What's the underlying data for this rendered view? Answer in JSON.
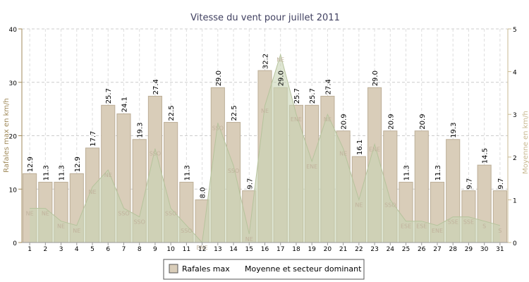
{
  "chart_data": {
    "type": "bar",
    "title": "Vitesse du vent pour juillet 2011",
    "ylabel_left": "Rafales max en km/h",
    "ylabel_right": "Moyenne en km/h",
    "ylim_left": [
      0,
      40
    ],
    "ylim_right": [
      0,
      5
    ],
    "yticks_left": [
      "0",
      "10",
      "20",
      "30",
      "40"
    ],
    "yticks_right": [
      "0",
      "1",
      "2",
      "3",
      "4",
      "5"
    ],
    "categories": [
      "1",
      "2",
      "3",
      "4",
      "5",
      "6",
      "7",
      "8",
      "9",
      "10",
      "11",
      "12",
      "13",
      "14",
      "15",
      "16",
      "17",
      "18",
      "19",
      "20",
      "21",
      "22",
      "23",
      "24",
      "25",
      "26",
      "27",
      "28",
      "29",
      "30",
      "31"
    ],
    "grid": true,
    "legend_position": "bottom-center",
    "colors": {
      "bar_fill": "#d9cdb9",
      "bar_stroke": "#bcae97",
      "area_fill": "#c8d4b4",
      "area_stroke": "#b6c39c",
      "sector_text": "#c0b29c",
      "right_axis": "#c8b890",
      "left_axis": "#a08a5a",
      "title": "#404060"
    },
    "series": [
      {
        "name": "Rafales max",
        "type": "bar",
        "axis": "left",
        "values": [
          12.9,
          11.3,
          11.3,
          12.9,
          17.7,
          25.7,
          24.1,
          19.3,
          27.4,
          22.5,
          11.3,
          8.0,
          29.0,
          22.5,
          9.7,
          32.2,
          29.0,
          25.7,
          25.7,
          27.4,
          20.9,
          16.1,
          29.0,
          20.9,
          11.3,
          20.9,
          11.3,
          19.3,
          9.7,
          14.5,
          9.7
        ],
        "labels": [
          "12.9",
          "11.3",
          "11.3",
          "12.9",
          "17.7",
          "25.7",
          "24.1",
          "19.3",
          "27.4",
          "22.5",
          "11.3",
          "8.0",
          "29.0",
          "22.5",
          "9.7",
          "32.2",
          "29.0",
          "25.7",
          "25.7",
          "27.4",
          "20.9",
          "16.1",
          "29.0",
          "20.9",
          "11.3",
          "20.9",
          "11.3",
          "19.3",
          "9.7",
          "14.5",
          "9.7"
        ]
      },
      {
        "name": "Moyenne et secteur dominant",
        "type": "area",
        "axis": "right",
        "values": [
          0.8,
          0.8,
          0.5,
          0.4,
          1.3,
          1.7,
          0.8,
          0.6,
          2.2,
          0.8,
          0.4,
          0.0,
          2.8,
          1.8,
          0.2,
          3.2,
          4.4,
          3.0,
          1.9,
          3.0,
          2.2,
          1.0,
          2.3,
          1.0,
          0.5,
          0.5,
          0.4,
          0.6,
          0.6,
          0.5,
          0.4
        ],
        "sectors": [
          "NE",
          "NE",
          "NE",
          "NE",
          "NE",
          "NE",
          "SSO",
          "SSO",
          "SSO",
          "SSO",
          "SSO",
          "ENE",
          "SSO",
          "SSO",
          "NE",
          "NE",
          "NE",
          "ENE",
          "ENE",
          "NE",
          "NE",
          "NE",
          "ENE",
          "SSO",
          "ESE",
          "ESE",
          "ENE",
          "SSE",
          "SSE",
          "S",
          "S"
        ]
      }
    ]
  }
}
